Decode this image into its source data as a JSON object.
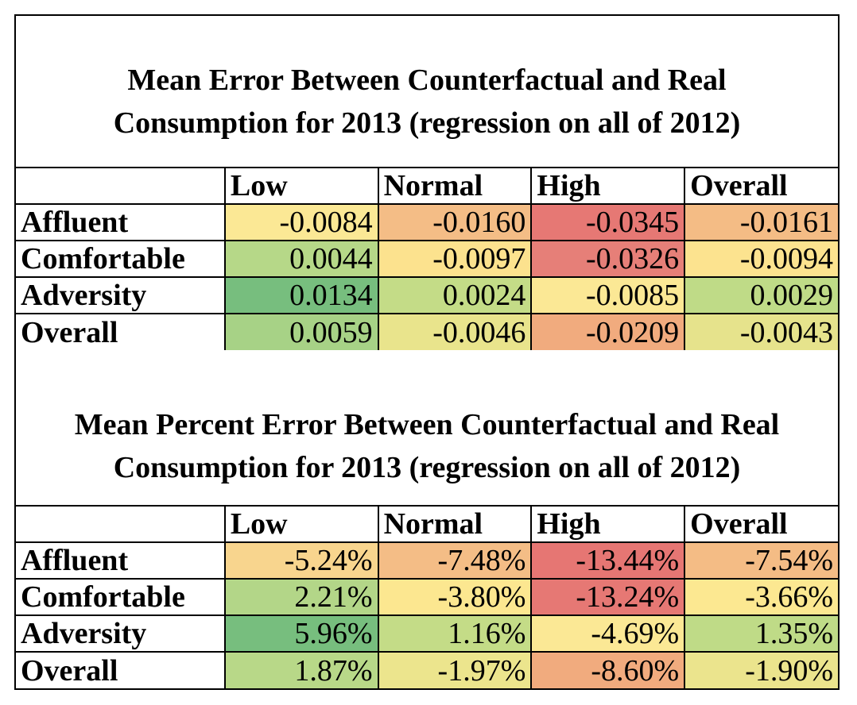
{
  "table1": {
    "title_line1": "Mean Error Between Counterfactual and Real",
    "title_line2": "Consumption for 2013 (regression on all of 2012)",
    "columns": [
      "Low",
      "Normal",
      "High",
      "Overall"
    ],
    "rows": [
      {
        "label": "Affluent",
        "values": [
          "-0.0084",
          "-0.0160",
          "-0.0345",
          "-0.0161"
        ],
        "colors": [
          "#fbe895",
          "#f4bd86",
          "#e67874",
          "#f4bc85"
        ]
      },
      {
        "label": "Comfortable",
        "values": [
          "0.0044",
          "-0.0097",
          "-0.0326",
          "-0.0094"
        ],
        "colors": [
          "#b6d888",
          "#fce28e",
          "#e67f78",
          "#fce38f"
        ]
      },
      {
        "label": "Adversity",
        "values": [
          "0.0134",
          "0.0024",
          "-0.0085",
          "0.0029"
        ],
        "colors": [
          "#77be7e",
          "#c4dc87",
          "#fbe895",
          "#bfdb87"
        ]
      },
      {
        "label": "Overall",
        "values": [
          "0.0059",
          "-0.0046",
          "-0.0209",
          "-0.0043"
        ],
        "colors": [
          "#a7d286",
          "#e9e48c",
          "#f1ab7e",
          "#e6e38c"
        ]
      }
    ]
  },
  "table2": {
    "title_line1": "Mean Percent Error Between Counterfactual and Real",
    "title_line2": "Consumption for 2013 (regression on all of 2012)",
    "columns": [
      "Low",
      "Normal",
      "High",
      "Overall"
    ],
    "rows": [
      {
        "label": "Affluent",
        "values": [
          "-5.24%",
          "-7.48%",
          "-13.44%",
          "-7.54%"
        ],
        "colors": [
          "#f8d58e",
          "#f4bd86",
          "#e67673",
          "#f4bc85"
        ]
      },
      {
        "label": "Comfortable",
        "values": [
          "2.21%",
          "-3.80%",
          "-13.24%",
          "-3.66%"
        ],
        "colors": [
          "#b3d688",
          "#fce790",
          "#e67874",
          "#fce891"
        ]
      },
      {
        "label": "Adversity",
        "values": [
          "5.96%",
          "1.16%",
          "-4.69%",
          "1.35%"
        ],
        "colors": [
          "#77be7e",
          "#c4dc87",
          "#fbe895",
          "#bfdb87"
        ]
      },
      {
        "label": "Overall",
        "values": [
          "1.87%",
          "-1.97%",
          "-8.60%",
          "-1.90%"
        ],
        "colors": [
          "#b8d888",
          "#ece58d",
          "#f1ab7e",
          "#ebe48d"
        ]
      }
    ]
  }
}
